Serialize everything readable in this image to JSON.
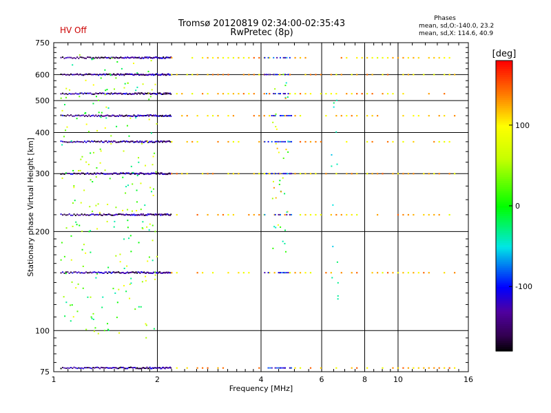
{
  "header": {
    "hv_status": "HV Off",
    "title_line1": "Tromsø 20120819 02:34:00-02:35:43",
    "title_line2": "RwPretec (8p)",
    "phases_title": "Phases",
    "phases_o": "mean, sd,O:-140.0, 23.2",
    "phases_x": "mean, sd,X: 114.6, 40.9"
  },
  "colors": {
    "grid": "#000000",
    "trace_low": "#3a1070",
    "trace_high": "#ff3300"
  },
  "chart_data": {
    "type": "scatter",
    "xlabel": "Frequency [MHz]",
    "ylabel": "Stationary phase Virtual Height [km]",
    "xscale": "log",
    "yscale": "log",
    "xlim": [
      1,
      16
    ],
    "ylim": [
      75,
      750
    ],
    "xticks": [
      1,
      2,
      4,
      6,
      8,
      10,
      16
    ],
    "yticks": [
      75,
      100,
      200,
      300,
      400,
      500,
      600,
      750
    ],
    "colorbar": {
      "label": "[deg]",
      "range": [
        -180,
        180
      ],
      "ticks": [
        -100,
        0,
        100
      ]
    },
    "echo_heights_km": [
      77,
      150,
      225,
      300,
      375,
      450,
      525,
      600,
      675
    ],
    "series": [
      {
        "x_range": [
          1.05,
          2.2
        ],
        "phase_deg": -140
      },
      {
        "x_range": [
          2.2,
          15
        ],
        "phase_deg": 115
      }
    ]
  }
}
